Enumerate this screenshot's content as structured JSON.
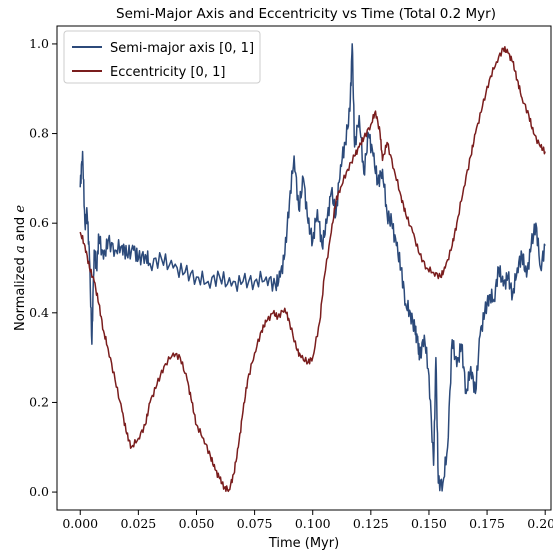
{
  "chart_data": {
    "type": "line",
    "title": "Semi-Major Axis and Eccentricity vs Time (Total 0.2 Myr)",
    "xlabel": "Time (Myr)",
    "ylabel_parts": [
      "Normalized ",
      "a",
      " and ",
      "e"
    ],
    "xlim": [
      -0.01,
      0.2025
    ],
    "ylim": [
      -0.04,
      1.04
    ],
    "xticks": [
      0.0,
      0.025,
      0.05,
      0.075,
      0.1,
      0.125,
      0.15,
      0.175,
      0.2
    ],
    "xtick_labels": [
      "0.000",
      "0.025",
      "0.050",
      "0.075",
      "0.100",
      "0.125",
      "0.150",
      "0.175",
      "0.200"
    ],
    "yticks": [
      0.0,
      0.2,
      0.4,
      0.6,
      0.8,
      1.0
    ],
    "ytick_labels": [
      "0.0",
      "0.2",
      "0.4",
      "0.6",
      "0.8",
      "1.0"
    ],
    "grid": false,
    "legend_position": "top-left",
    "series": [
      {
        "name": "Semi-major axis [0, 1]",
        "color": "#2c4a7a",
        "x": [
          0.0,
          0.001,
          0.002,
          0.003,
          0.004,
          0.005,
          0.006,
          0.007,
          0.008,
          0.01,
          0.012,
          0.015,
          0.018,
          0.02,
          0.023,
          0.025,
          0.028,
          0.03,
          0.035,
          0.04,
          0.045,
          0.05,
          0.055,
          0.06,
          0.065,
          0.07,
          0.075,
          0.08,
          0.084,
          0.086,
          0.088,
          0.09,
          0.092,
          0.094,
          0.096,
          0.098,
          0.1,
          0.102,
          0.104,
          0.106,
          0.108,
          0.11,
          0.112,
          0.114,
          0.116,
          0.117,
          0.118,
          0.12,
          0.122,
          0.124,
          0.126,
          0.128,
          0.13,
          0.132,
          0.134,
          0.136,
          0.138,
          0.14,
          0.142,
          0.144,
          0.145,
          0.146,
          0.148,
          0.15,
          0.152,
          0.153,
          0.154,
          0.156,
          0.158,
          0.16,
          0.162,
          0.164,
          0.166,
          0.168,
          0.17,
          0.172,
          0.174,
          0.176,
          0.178,
          0.18,
          0.182,
          0.184,
          0.186,
          0.188,
          0.19,
          0.192,
          0.194,
          0.196,
          0.198,
          0.2
        ],
        "values": [
          0.68,
          0.76,
          0.6,
          0.62,
          0.52,
          0.33,
          0.54,
          0.5,
          0.57,
          0.52,
          0.56,
          0.54,
          0.55,
          0.53,
          0.54,
          0.52,
          0.53,
          0.51,
          0.52,
          0.5,
          0.49,
          0.48,
          0.47,
          0.48,
          0.46,
          0.47,
          0.47,
          0.48,
          0.46,
          0.48,
          0.53,
          0.65,
          0.75,
          0.63,
          0.7,
          0.6,
          0.56,
          0.63,
          0.55,
          0.6,
          0.67,
          0.62,
          0.73,
          0.78,
          0.85,
          1.0,
          0.77,
          0.84,
          0.71,
          0.8,
          0.75,
          0.69,
          0.72,
          0.62,
          0.6,
          0.55,
          0.5,
          0.42,
          0.4,
          0.36,
          0.34,
          0.3,
          0.35,
          0.26,
          0.06,
          0.3,
          0.02,
          0.02,
          0.1,
          0.34,
          0.28,
          0.33,
          0.22,
          0.28,
          0.22,
          0.35,
          0.4,
          0.44,
          0.43,
          0.5,
          0.46,
          0.48,
          0.44,
          0.5,
          0.53,
          0.48,
          0.55,
          0.6,
          0.5,
          0.55
        ]
      },
      {
        "name": "Eccentricity [0, 1]",
        "color": "#7a1d1d",
        "x": [
          0.0,
          0.002,
          0.004,
          0.006,
          0.008,
          0.01,
          0.012,
          0.015,
          0.018,
          0.02,
          0.022,
          0.025,
          0.028,
          0.03,
          0.033,
          0.036,
          0.04,
          0.043,
          0.046,
          0.048,
          0.05,
          0.053,
          0.056,
          0.058,
          0.06,
          0.062,
          0.064,
          0.066,
          0.068,
          0.07,
          0.072,
          0.075,
          0.078,
          0.08,
          0.083,
          0.085,
          0.088,
          0.09,
          0.093,
          0.095,
          0.098,
          0.1,
          0.103,
          0.105,
          0.108,
          0.11,
          0.112,
          0.115,
          0.118,
          0.12,
          0.122,
          0.125,
          0.127,
          0.129,
          0.13,
          0.132,
          0.135,
          0.138,
          0.14,
          0.143,
          0.146,
          0.149,
          0.152,
          0.155,
          0.157,
          0.16,
          0.162,
          0.165,
          0.168,
          0.17,
          0.173,
          0.176,
          0.179,
          0.182,
          0.184,
          0.186,
          0.188,
          0.19,
          0.193,
          0.195,
          0.198,
          0.2
        ],
        "values": [
          0.58,
          0.55,
          0.5,
          0.47,
          0.42,
          0.36,
          0.32,
          0.25,
          0.18,
          0.13,
          0.1,
          0.12,
          0.15,
          0.2,
          0.24,
          0.28,
          0.31,
          0.3,
          0.25,
          0.2,
          0.15,
          0.12,
          0.08,
          0.05,
          0.03,
          0.01,
          0.005,
          0.04,
          0.1,
          0.18,
          0.25,
          0.31,
          0.36,
          0.38,
          0.4,
          0.39,
          0.41,
          0.38,
          0.32,
          0.3,
          0.29,
          0.3,
          0.38,
          0.48,
          0.58,
          0.65,
          0.68,
          0.72,
          0.75,
          0.77,
          0.79,
          0.82,
          0.85,
          0.8,
          0.74,
          0.78,
          0.72,
          0.66,
          0.62,
          0.58,
          0.53,
          0.5,
          0.49,
          0.48,
          0.5,
          0.55,
          0.6,
          0.68,
          0.75,
          0.8,
          0.86,
          0.92,
          0.96,
          0.99,
          0.98,
          0.96,
          0.92,
          0.88,
          0.84,
          0.8,
          0.77,
          0.76
        ]
      }
    ]
  }
}
